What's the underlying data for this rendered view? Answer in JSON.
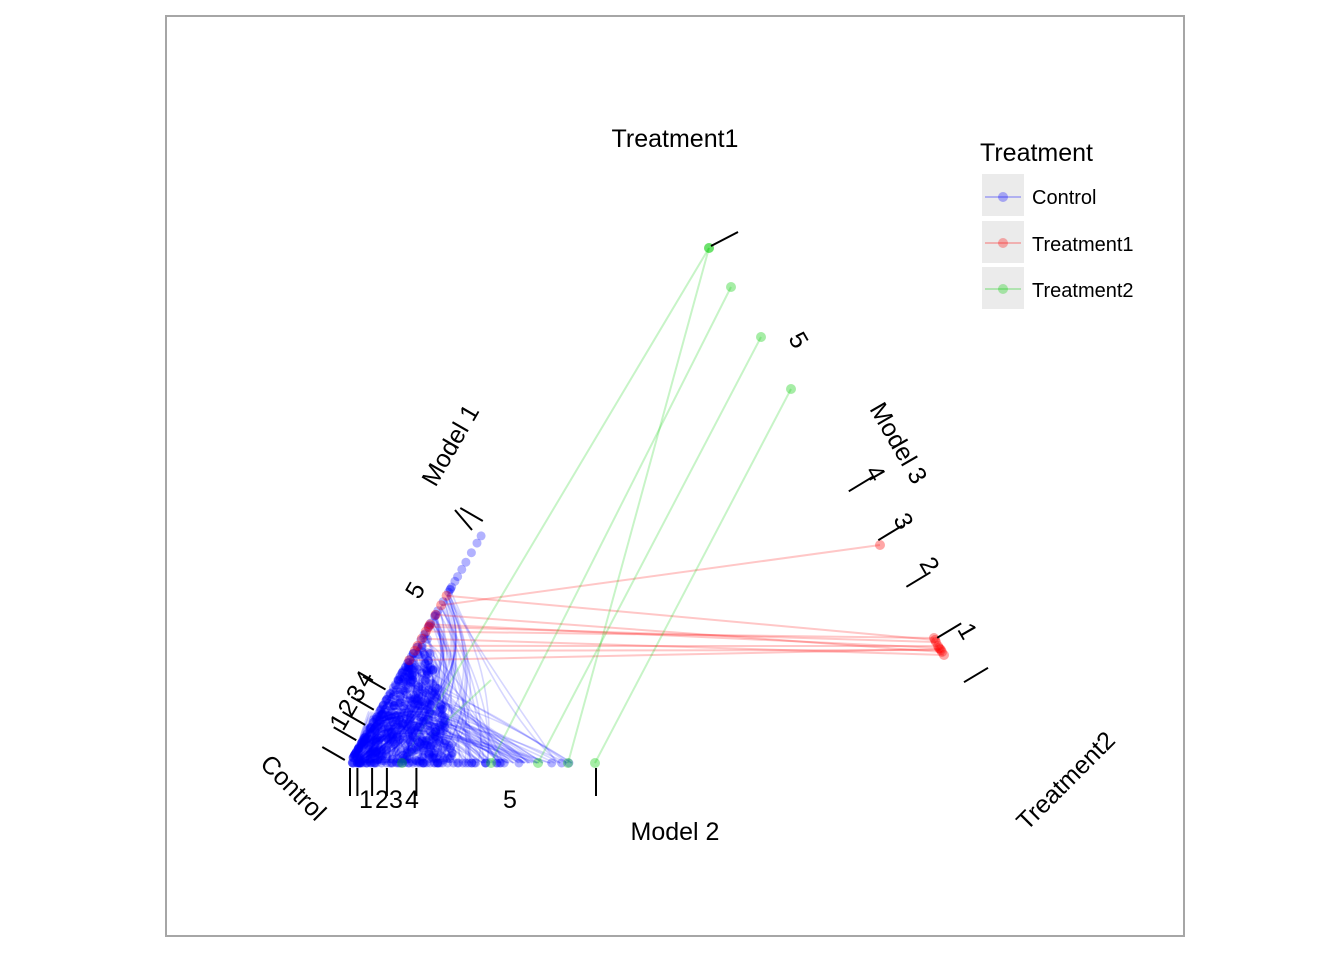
{
  "chart_data": {
    "type": "scatter",
    "subtype": "radviz / ternary-style coordinate projection",
    "corner_labels": {
      "top": "Treatment1",
      "left": "Control",
      "right": "Treatment2"
    },
    "axes": [
      {
        "name": "Model 1",
        "ticks": [
          "1",
          "2",
          "3",
          "4",
          "5"
        ]
      },
      {
        "name": "Model 2",
        "ticks": [
          "1",
          "2",
          "3",
          "4",
          "5"
        ]
      },
      {
        "name": "Model 3",
        "ticks": [
          "1",
          "2",
          "3",
          "4",
          "5"
        ]
      }
    ],
    "legend": {
      "title": "Treatment",
      "placement": "top-right",
      "entries": [
        {
          "label": "Control",
          "color": "#0000ff"
        },
        {
          "label": "Treatment1",
          "color": "#ff0000"
        },
        {
          "label": "Treatment2",
          "color": "#00cc00"
        }
      ]
    },
    "series": [
      {
        "name": "Control",
        "color": "#0000ff",
        "observations": "many",
        "note": "profiles concentrated near Control corner"
      },
      {
        "name": "Treatment1",
        "color": "#ff0000",
        "observations": "about 12",
        "note": "Model 3 values near 1–2.5, linked to Model 1 values near 4–5"
      },
      {
        "name": "Treatment2",
        "color": "#00cc00",
        "observations": "about 5",
        "note": "Model 1 values near 5, Model 2 values near 4–5"
      }
    ],
    "grid": false,
    "panel_border": true
  }
}
